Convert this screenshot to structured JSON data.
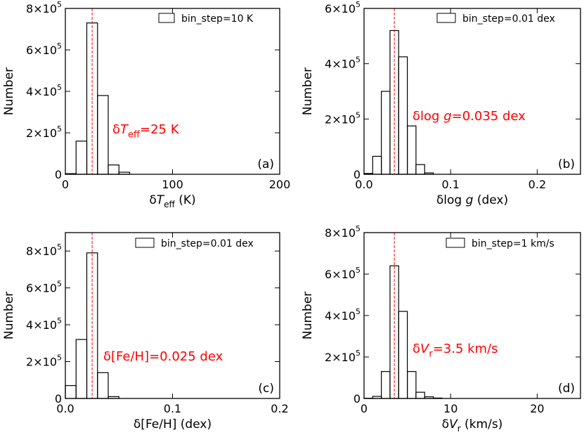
{
  "chart_data": [
    {
      "type": "bar",
      "panel_label": "(a)",
      "x_unit": "K",
      "bin_edges": [
        0,
        10,
        20,
        30,
        40,
        50,
        60
      ],
      "values": [
        3000,
        160000,
        730000,
        380000,
        45000,
        10000
      ],
      "xlim": [
        0,
        200
      ],
      "ylim": [
        0,
        800000
      ],
      "x_ticks": [
        0,
        100,
        200
      ],
      "y_ticks": [
        0,
        200000,
        400000,
        600000,
        800000
      ],
      "xlabel": {
        "pre": "δ",
        "var": "T",
        "sub": "eff",
        "post": " (K)"
      },
      "ylabel": "Number",
      "legend": "bin_step=10 K",
      "legend_position": "top-right",
      "vline": 25,
      "annotation": {
        "pre": "δ",
        "var": "T",
        "sub": "eff",
        "post": "=25 K"
      },
      "grid": false
    },
    {
      "type": "bar",
      "panel_label": "(b)",
      "x_unit": "dex",
      "bin_edges": [
        0,
        0.01,
        0.02,
        0.03,
        0.04,
        0.05,
        0.06,
        0.07,
        0.08
      ],
      "values": [
        3000,
        65000,
        300000,
        520000,
        425000,
        175000,
        35000,
        5000
      ],
      "xlim": [
        0,
        0.25
      ],
      "ylim": [
        0,
        600000
      ],
      "x_ticks": [
        0.0,
        0.1,
        0.2
      ],
      "y_ticks": [
        0,
        200000,
        400000,
        600000
      ],
      "xlabel": {
        "pre": "δlog  ",
        "var": "g",
        "sub": "",
        "post": " (dex)"
      },
      "ylabel": "Number",
      "legend": "bin_step=0.01 dex",
      "legend_position": "top-right",
      "vline": 0.035,
      "annotation": {
        "pre": "δlog  ",
        "var": "g",
        "sub": "",
        "post": "=0.035 dex"
      },
      "grid": false
    },
    {
      "type": "bar",
      "panel_label": "(c)",
      "x_unit": "dex",
      "bin_edges": [
        0,
        0.01,
        0.02,
        0.03,
        0.04,
        0.05
      ],
      "values": [
        70000,
        320000,
        790000,
        140000,
        10000
      ],
      "xlim": [
        0,
        0.2
      ],
      "ylim": [
        0,
        900000
      ],
      "x_ticks": [
        0.0,
        0.1,
        0.2
      ],
      "y_ticks": [
        0,
        200000,
        400000,
        600000,
        800000
      ],
      "xlabel": {
        "pre": "δ[Fe/H] (dex)",
        "var": "",
        "sub": "",
        "post": ""
      },
      "ylabel": "Number",
      "legend": "bin_step=0.01 dex",
      "legend_position": "top-right",
      "vline": 0.025,
      "annotation": {
        "pre": "δ[Fe/H]=0.025 dex",
        "var": "",
        "sub": "",
        "post": ""
      },
      "grid": false
    },
    {
      "type": "bar",
      "panel_label": "(d)",
      "x_unit": "km/s",
      "bin_edges": [
        0,
        1,
        2,
        3,
        4,
        5,
        6,
        7,
        8,
        9
      ],
      "values": [
        1000,
        10000,
        130000,
        640000,
        420000,
        130000,
        30000,
        8000,
        2000
      ],
      "xlim": [
        0,
        25
      ],
      "ylim": [
        0,
        800000
      ],
      "x_ticks": [
        0,
        10,
        20
      ],
      "y_ticks": [
        0,
        200000,
        400000,
        600000,
        800000
      ],
      "xlabel": {
        "pre": "δ",
        "var": "V",
        "sub": "r",
        "post": " (km/s)"
      },
      "ylabel": "Number",
      "legend": "bin_step=1 km/s",
      "legend_position": "top-right",
      "vline": 3.5,
      "annotation": {
        "pre": "δ",
        "var": "V",
        "sub": "r",
        "post": "=3.5 km/s"
      },
      "grid": false
    }
  ],
  "colors": {
    "histogram": "#000000",
    "median_line": "#ff0000",
    "annotation": "#ff0000"
  }
}
